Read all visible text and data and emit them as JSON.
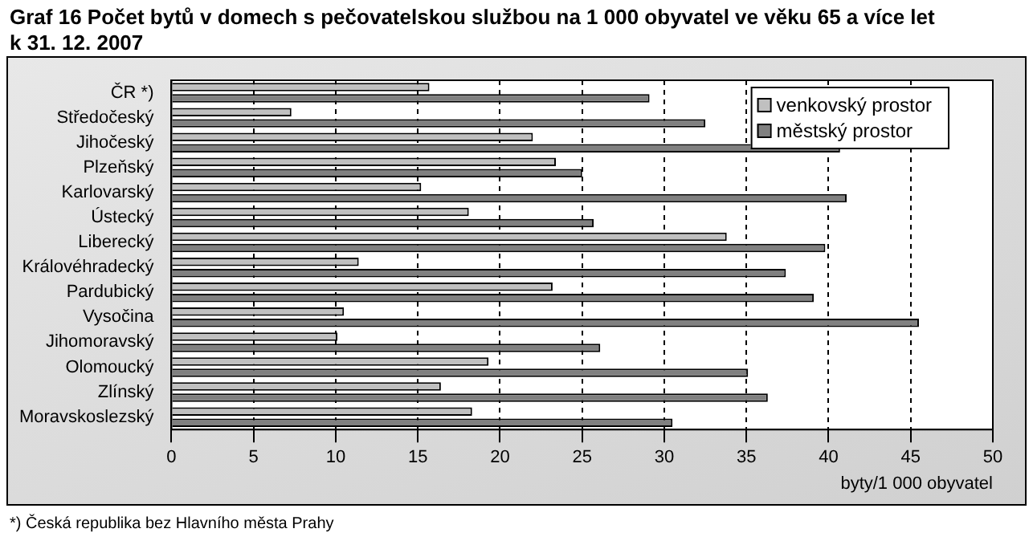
{
  "chart_data": {
    "type": "bar",
    "orientation": "horizontal",
    "title": "Graf 16 Počet bytů v domech s pečovatelskou službou na 1 000 obyvatel ve věku 65 a více let\nk 31. 12. 2007",
    "xlabel": "byty/1 000 obyvatel",
    "categories": [
      "ČR *)",
      "Středočeský",
      "Jihočeský",
      "Plzeňský",
      "Karlovarský",
      "Ústecký",
      "Liberecký",
      "Královéhradecký",
      "Pardubický",
      "Vysočina",
      "Jihomoravský",
      "Olomoucký",
      "Zlínský",
      "Moravskoslezský"
    ],
    "series": [
      {
        "name": "venkovský prostor",
        "color": "#c0c0c0",
        "values": [
          15.7,
          7.3,
          22.0,
          23.4,
          15.2,
          18.1,
          33.8,
          11.4,
          23.2,
          10.5,
          10.1,
          19.3,
          16.4,
          18.3
        ]
      },
      {
        "name": "městský prostor",
        "color": "#808080",
        "values": [
          29.1,
          32.5,
          40.7,
          25.0,
          41.1,
          25.7,
          39.8,
          37.4,
          39.1,
          45.5,
          26.1,
          35.1,
          36.3,
          30.5
        ]
      }
    ],
    "xlim": [
      0,
      50
    ],
    "xticks": [
      0,
      5,
      10,
      15,
      20,
      25,
      30,
      35,
      40,
      45,
      50
    ],
    "grid": "x",
    "legend": "top right",
    "annotations": [
      "*) Česká republika bez Hlavního města Prahy"
    ]
  }
}
